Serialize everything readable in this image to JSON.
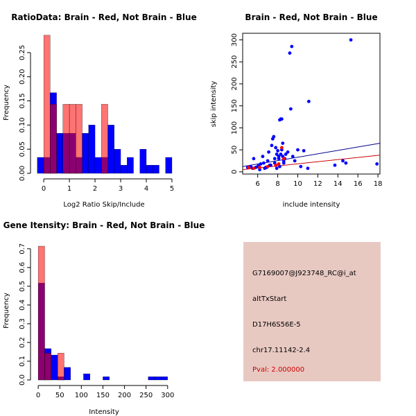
{
  "chart_data": [
    {
      "type": "bar",
      "title": "RatioData: Brain - Red, Not Brain - Blue",
      "xlabel": "Log2 Ratio Skip/Include",
      "ylabel": "Frequency",
      "xlim": [
        -0.3,
        5.0
      ],
      "ylim": [
        0,
        0.29
      ],
      "xticks": [
        "0",
        "1",
        "2",
        "3",
        "4",
        "5"
      ],
      "yticks": [
        "0.00",
        "0.05",
        "0.10",
        "0.15",
        "0.20",
        "0.25"
      ],
      "bin_start": -0.25,
      "bin_width": 0.25,
      "series": [
        {
          "name": "Not Brain",
          "color": "#0000ff",
          "values": [
            0.033,
            0.033,
            0.167,
            0.083,
            0.083,
            0.083,
            0.033,
            0.083,
            0.1,
            0.033,
            0.033,
            0.1,
            0.05,
            0.017,
            0.033,
            0.0,
            0.05,
            0.017,
            0.017,
            0.0,
            0.033
          ]
        },
        {
          "name": "Brain",
          "color": "#ff0000",
          "values": [
            0.0,
            0.286,
            0.143,
            0.0,
            0.143,
            0.143,
            0.143,
            0.0,
            0.0,
            0.0,
            0.143,
            0.0,
            0.0,
            0.0,
            0.0,
            0.0,
            0.0,
            0.0,
            0.0,
            0.0,
            0.0
          ]
        }
      ]
    },
    {
      "type": "scatter",
      "title": "Brain - Red, Not Brain - Blue",
      "xlabel": "include intensity",
      "ylabel": "skip intensity",
      "xlim": [
        4.5,
        18.2
      ],
      "ylim": [
        -5,
        315
      ],
      "xticks": [
        "6",
        "8",
        "10",
        "12",
        "14",
        "16",
        "18"
      ],
      "yticks": [
        "0",
        "50",
        "100",
        "150",
        "200",
        "250",
        "300"
      ],
      "series": [
        {
          "name": "Not Brain",
          "color": "#0000ff",
          "x": [
            5.0,
            5.3,
            5.5,
            5.6,
            5.8,
            6.0,
            6.1,
            6.3,
            6.5,
            6.6,
            6.8,
            7.0,
            7.1,
            7.2,
            7.4,
            7.5,
            7.6,
            7.7,
            7.8,
            7.9,
            8.0,
            8.1,
            8.2,
            8.3,
            8.4,
            8.5,
            8.6,
            8.7,
            8.8,
            9.0,
            9.2,
            9.3,
            9.4,
            9.5,
            9.7,
            10.0,
            10.3,
            10.6,
            11.0,
            11.1,
            13.7,
            14.5,
            14.8,
            15.3,
            17.9,
            6.9,
            7.3,
            7.9,
            8.3,
            8.6,
            8.2,
            8.4,
            7.7,
            8.1,
            8.5,
            6.2,
            6.7
          ],
          "y": [
            10,
            12,
            8,
            30,
            10,
            12,
            15,
            18,
            35,
            20,
            10,
            25,
            45,
            15,
            60,
            75,
            80,
            30,
            55,
            40,
            48,
            35,
            118,
            120,
            120,
            65,
            20,
            30,
            40,
            45,
            270,
            143,
            285,
            35,
            25,
            50,
            12,
            48,
            8,
            160,
            15,
            25,
            20,
            300,
            18,
            10,
            15,
            8,
            40,
            25,
            12,
            50,
            20,
            30,
            35,
            5,
            8
          ]
        },
        {
          "name": "Brain",
          "color": "#ff0000",
          "x": [
            5.1,
            5.6,
            6.2,
            7.0,
            7.8,
            8.1,
            8.4,
            8.6
          ],
          "y": [
            10,
            8,
            10,
            12,
            15,
            18,
            55,
            30
          ]
        }
      ],
      "fit_lines": [
        {
          "name": "Not Brain fit",
          "color": "#00008b",
          "x": [
            4.5,
            18.2
          ],
          "y": [
            12,
            65
          ]
        },
        {
          "name": "Brain fit",
          "color": "#cc0000",
          "x": [
            4.5,
            18.2
          ],
          "y": [
            5,
            38
          ]
        }
      ]
    },
    {
      "type": "bar",
      "title": "Gene Itensity: Brain - Red, Not Brain - Blue",
      "xlabel": "Intensity",
      "ylabel": "Frequency",
      "xlim": [
        -5,
        310
      ],
      "ylim": [
        0,
        0.74
      ],
      "xticks": [
        "0",
        "50",
        "100",
        "150",
        "200",
        "250",
        "300"
      ],
      "yticks": [
        "0.0",
        "0.1",
        "0.2",
        "0.3",
        "0.4",
        "0.5",
        "0.6",
        "0.7"
      ],
      "bin_start": 0,
      "bin_width": 15,
      "series": [
        {
          "name": "Not Brain",
          "color": "#0000ff",
          "values": [
            0.517,
            0.167,
            0.133,
            0.017,
            0.067,
            0.0,
            0.0,
            0.033,
            0.0,
            0.0,
            0.017,
            0.0,
            0.0,
            0.0,
            0.0,
            0.0,
            0.0,
            0.017,
            0.017,
            0.017
          ]
        },
        {
          "name": "Brain",
          "color": "#ff0000",
          "values": [
            0.714,
            0.143,
            0.0,
            0.143,
            0.0,
            0.0,
            0.0,
            0.0,
            0.0,
            0.0,
            0.0,
            0.0,
            0.0,
            0.0,
            0.0,
            0.0,
            0.0,
            0.0,
            0.0,
            0.0
          ]
        }
      ]
    }
  ],
  "info_panel": {
    "background": "#e8c9c2",
    "probe_id": "G7169007@J923748_RC@i_at",
    "event_type": "altTxStart",
    "gene_name": "D17H6S56E-5",
    "location": "chr17.11142-2.4",
    "pval": "Pval: 2.000000",
    "pval_color": "#cc0000"
  }
}
